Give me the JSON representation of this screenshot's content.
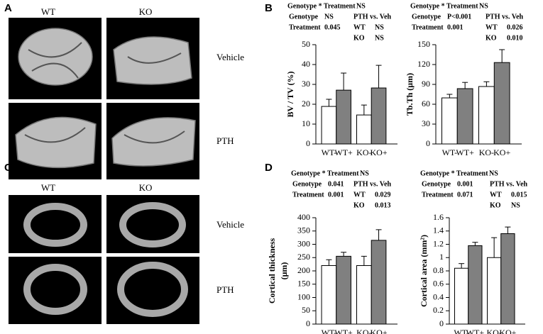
{
  "panel_a": {
    "label": "A",
    "columns": [
      "WT",
      "KO"
    ],
    "rows": [
      "Vehicle",
      "PTH"
    ]
  },
  "panel_b": {
    "label": "B"
  },
  "panel_c": {
    "label": "C",
    "columns": [
      "WT",
      "KO"
    ],
    "rows": [
      "Vehicle",
      "PTH"
    ]
  },
  "panel_d": {
    "label": "D"
  },
  "chart_data": [
    {
      "type": "bar",
      "ylabel": "BV / TV (%)",
      "categories": [
        "WT-",
        "WT+",
        "KO-",
        "KO+"
      ],
      "values": [
        18.9,
        27.1,
        14.6,
        28.2
      ],
      "errors": [
        3.6,
        8.6,
        5.0,
        11.4
      ],
      "colors": [
        "#ffffff",
        "#808080",
        "#ffffff",
        "#808080"
      ],
      "ylim": [
        0,
        50
      ],
      "yticks": [
        0,
        10,
        20,
        30,
        40,
        50
      ],
      "interaction": {
        "label": "Genotype * Treatment",
        "value": "NS"
      },
      "effects": [
        {
          "label": "Genotype",
          "value": "NS"
        },
        {
          "label": "Treatment",
          "value": "0.045"
        }
      ],
      "comparison": {
        "title": "PTH vs. Veh",
        "rows": [
          {
            "label": "WT",
            "value": "NS"
          },
          {
            "label": "KO",
            "value": "NS"
          }
        ]
      }
    },
    {
      "type": "bar",
      "ylabel": "Tb.Th (μm)",
      "categories": [
        "WT-",
        "WT+",
        "KO-",
        "KO+"
      ],
      "values": [
        69.6,
        83.6,
        86.8,
        123
      ],
      "errors": [
        5.4,
        9.4,
        7.2,
        19.5
      ],
      "colors": [
        "#ffffff",
        "#808080",
        "#ffffff",
        "#808080"
      ],
      "ylim": [
        0,
        150
      ],
      "yticks": [
        0,
        30,
        60,
        90,
        120,
        150
      ],
      "interaction": {
        "label": "Genotype * Treatment",
        "value": "NS"
      },
      "effects": [
        {
          "label": "Genotype",
          "value": "P<0.001"
        },
        {
          "label": "Treatment",
          "value": "0.001"
        }
      ],
      "comparison": {
        "title": "PTH vs. Veh",
        "rows": [
          {
            "label": "WT",
            "value": "0.026"
          },
          {
            "label": "KO",
            "value": "0.010"
          }
        ]
      }
    },
    {
      "type": "bar",
      "ylabel": [
        "Cortical thickness",
        "(μm)"
      ],
      "categories": [
        "WT-",
        "WT+",
        "KO-",
        "KO+"
      ],
      "values": [
        220,
        255,
        220,
        315
      ],
      "errors": [
        22,
        15,
        35,
        40
      ],
      "colors": [
        "#ffffff",
        "#808080",
        "#ffffff",
        "#808080"
      ],
      "ylim": [
        0,
        400
      ],
      "yticks": [
        0,
        50,
        100,
        150,
        200,
        250,
        300,
        350,
        400
      ],
      "interaction": {
        "label": "Genotype * Treatment",
        "value": "NS"
      },
      "effects": [
        {
          "label": "Genotype",
          "value": "0.041"
        },
        {
          "label": "Treatment",
          "value": "0.001"
        }
      ],
      "comparison": {
        "title": "PTH vs. Veh",
        "rows": [
          {
            "label": "WT",
            "value": "0.029"
          },
          {
            "label": "KO",
            "value": "0.013"
          }
        ]
      }
    },
    {
      "type": "bar",
      "ylabel": "Cortical area (mm²)",
      "categories": [
        "WT-",
        "WT+",
        "KO-",
        "KO+"
      ],
      "values": [
        0.84,
        1.18,
        1.0,
        1.36
      ],
      "errors": [
        0.07,
        0.05,
        0.3,
        0.1
      ],
      "colors": [
        "#ffffff",
        "#808080",
        "#ffffff",
        "#808080"
      ],
      "ylim": [
        0,
        1.6
      ],
      "yticks": [
        0,
        0.2,
        0.4,
        0.6,
        0.8,
        1,
        1.2,
        1.4,
        1.6
      ],
      "interaction": {
        "label": "Genotype * Treatment",
        "value": "NS"
      },
      "effects": [
        {
          "label": "Genotype",
          "value": "0.001"
        },
        {
          "label": "Treatment",
          "value": "0.071"
        }
      ],
      "comparison": {
        "title": "PTH vs. Veh",
        "rows": [
          {
            "label": "WT",
            "value": "0.015"
          },
          {
            "label": "KO",
            "value": "NS"
          }
        ]
      }
    }
  ]
}
